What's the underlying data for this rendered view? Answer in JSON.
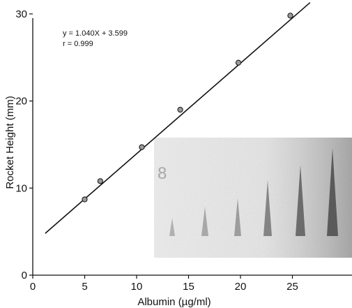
{
  "chart_data": {
    "type": "scatter",
    "title": "",
    "xlabel": "Albumin (µg/ml)",
    "ylabel": "Rocket Height (mm)",
    "xlim": [
      0,
      31
    ],
    "ylim": [
      0,
      30
    ],
    "x_ticks": [
      "0",
      "5",
      "10",
      "15",
      "20",
      "25"
    ],
    "y_ticks": [
      "0",
      "10",
      "20",
      "30"
    ],
    "series": [
      {
        "x": [
          5,
          6.5,
          10.5,
          14.2,
          19.8,
          24.8
        ],
        "y": [
          8.7,
          10.8,
          14.7,
          19.0,
          24.4,
          29.8
        ]
      }
    ],
    "fit_line": {
      "x": [
        1.2,
        26.7
      ],
      "y": [
        4.8,
        31.3
      ]
    },
    "annotations": [
      "y = 1.040X + 3.599",
      "r = 0.999"
    ],
    "grid": false,
    "legend": "none",
    "inset": "rocket immunoelectrophoresis gel photograph",
    "colors": {
      "ink": "#111111",
      "gel_background": "#d9d9d9",
      "point_fill": "#9a9a9a"
    }
  }
}
